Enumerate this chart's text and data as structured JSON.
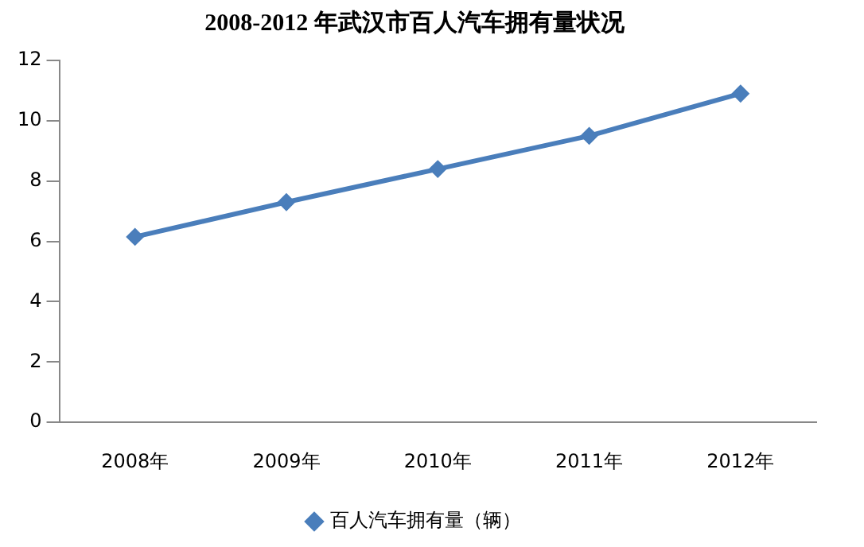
{
  "chart_data": {
    "type": "line",
    "title": "2008-2012 年武汉市百人汽车拥有量状况",
    "categories": [
      "2008年",
      "2009年",
      "2010年",
      "2011年",
      "2012年"
    ],
    "series": [
      {
        "name": "百人汽车拥有量（辆）",
        "color": "#4a7ebb",
        "values": [
          6.15,
          7.3,
          8.4,
          9.5,
          10.9
        ]
      }
    ],
    "ylim": [
      0,
      12
    ],
    "yticks": [
      0,
      2,
      4,
      6,
      8,
      10,
      12
    ],
    "grid": false,
    "legend": "bottom",
    "marker": "diamond",
    "line_style": "solid"
  }
}
